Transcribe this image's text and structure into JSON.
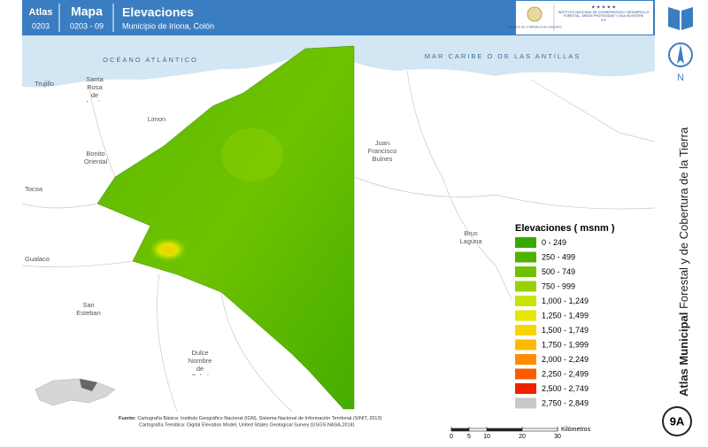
{
  "header": {
    "atlas_label": "Atlas",
    "atlas_code": "0203",
    "map_label": "Mapa",
    "map_code": "0203 - 09",
    "title": "Elevaciones",
    "subtitle": "Municipio de Iriona, Colón"
  },
  "logos": {
    "government": "GOBIERNO DE LA REPÚBLICA DE HONDURAS",
    "institute": "INSTITUTO NACIONAL DE CONSERVACIÓN Y DESARROLLO FORESTAL, ÁREAS PROTEGIDAS Y VIDA SILVESTRE",
    "institute_short": "ICF"
  },
  "sidebar": {
    "north": "N",
    "title_bold": "Atlas Municipal",
    "title_rest": "Forestal y de Cobertura de la Tierra",
    "badge": "9A"
  },
  "map_labels": {
    "ocean": "OCÉANO ATLÁNTICO",
    "sea": "MAR CARIBE O DE LAS ANTILLAS",
    "places": [
      "Trujillo",
      "Santa Rosa de Aguán",
      "Limon",
      "Bonito Oriental",
      "Tocoa",
      "Juan Francisco Bulnes",
      "Brus Laguna",
      "Gualaco",
      "San Esteban",
      "Dulce Nombre de Culmí"
    ]
  },
  "legend": {
    "title": "Elevaciones ( msnm )",
    "items": [
      {
        "label": "0 - 249",
        "color": "#38a800"
      },
      {
        "label": "250 - 499",
        "color": "#4db300"
      },
      {
        "label": "500 - 749",
        "color": "#70c000"
      },
      {
        "label": "750 - 999",
        "color": "#98d100"
      },
      {
        "label": "1,000 - 1,249",
        "color": "#c6e500"
      },
      {
        "label": "1,250 - 1,499",
        "color": "#e6e600"
      },
      {
        "label": "1,500 - 1,749",
        "color": "#f7d600"
      },
      {
        "label": "1,750 - 1,999",
        "color": "#ffbb00"
      },
      {
        "label": "2,000 - 2,249",
        "color": "#ff8c00"
      },
      {
        "label": "2,250 - 2,499",
        "color": "#ff5a00"
      },
      {
        "label": "2,500 - 2,749",
        "color": "#f02000"
      },
      {
        "label": "2,750 - 2,849",
        "color": "#c8c8c8"
      }
    ]
  },
  "source": {
    "heading": "Fuente:",
    "line1": "Cartografía Básica: Instituto Geográfico Nacional (IGN), Sistema Nacional de Información Territorial (SINIT, 2013)",
    "line2": "Cartografía Temática: Digital Elevation Model, United States Geological Survey (USGS-NASA,2014)"
  },
  "scale": {
    "ticks": [
      0,
      5,
      10,
      20,
      30
    ],
    "unit": "Kilómetros"
  }
}
